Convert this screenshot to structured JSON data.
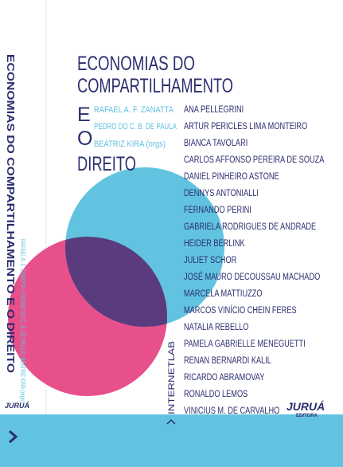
{
  "cover": {
    "title_lines": [
      "ECONOMIAS DO",
      "COMPARTILHAMENTO",
      "E",
      "O",
      "DIREITO"
    ],
    "organizers": [
      "RAFAEL A. F. ZANATTA",
      "PEDRO DO C. B. DE PAULA",
      "BEATRIZ KIRA (orgs)"
    ],
    "authors": [
      "ANA PELLEGRINI",
      "ARTUR PERICLES LIMA MONTEIRO",
      "BIANCA TAVOLARI",
      "CARLOS AFFONSO PEREIRA DE SOUZA",
      "DANIEL PINHEIRO ASTONE",
      "DENNYS ANTONIALLI",
      "FERNANDO PERINI",
      "GABRIELA RODRIGUES DE ANDRADE",
      "HEIDER BERLINK",
      "JULIET SCHOR",
      "JOSÉ MAURO DECOUSSAU MACHADO",
      "MARCELA MATTIUZZO",
      "MARCOS VINÍCIO CHEIN FERES",
      "NATALIA REBELLO",
      "PAMELA GABRIELLE MENEGUETTI",
      "RENAN BERNARDI KALIL",
      "RICARDO ABRAMOVAY",
      "RONALDO LEMOS",
      "VINICIUS M. DE CARVALHO"
    ],
    "imprint": "INTERNETLAB",
    "publisher": "JURUÁ",
    "publisher_sub": "EDITORA"
  },
  "spine": {
    "title": "ECONOMIAS DO COMPARTILHAMENTO E O DIREITO",
    "organizers": "RAFAEL A. F. ZANATTA | PEDRO DO C. B. DE PAULA | BEATRIZ KIRA (orgs)",
    "publisher": "JURUÁ"
  }
}
